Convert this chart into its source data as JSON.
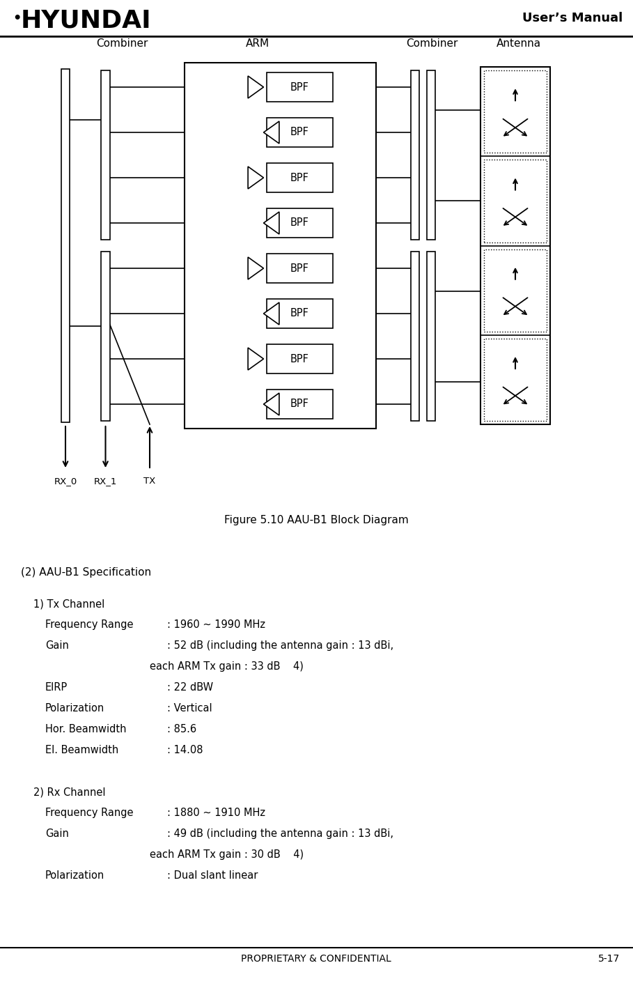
{
  "page_title": "User’s Manual",
  "footer_left": "PROPRIETARY & CONFIDENTIAL",
  "footer_right": "5-17",
  "figure_caption": "Figure 5.10 AAU-B1 Block Diagram",
  "spec_heading": "(2) AAU-B1 Specification",
  "col_labels": [
    "Combiner",
    "ARM",
    "Combiner",
    "Antenna"
  ],
  "port_labels": [
    "RX_0",
    "RX_1",
    "TX"
  ],
  "spec_items": [
    {
      "label": "1) Tx Channel",
      "value": "",
      "indent": 1,
      "extra_space_before": false
    },
    {
      "label": "Frequency Range",
      "value": ": 1960 ~ 1990 MHz",
      "indent": 2,
      "extra_space_before": false
    },
    {
      "label": "Gain",
      "value": ": 52 dB (including the antenna gain : 13 dBi,",
      "indent": 2,
      "extra_space_before": false
    },
    {
      "label": "",
      "value": "each ARM Tx gain : 33 dB    4)",
      "indent": 3,
      "extra_space_before": false
    },
    {
      "label": "EIRP",
      "value": ": 22 dBW",
      "indent": 2,
      "extra_space_before": false
    },
    {
      "label": "Polarization",
      "value": ": Vertical",
      "indent": 2,
      "extra_space_before": false
    },
    {
      "label": "Hor. Beamwidth",
      "value": ": 85.6",
      "indent": 2,
      "extra_space_before": false
    },
    {
      "label": "El. Beamwidth",
      "value": ": 14.08",
      "indent": 2,
      "extra_space_before": false
    },
    {
      "label": "",
      "value": "",
      "indent": 0,
      "extra_space_before": false
    },
    {
      "label": "2) Rx Channel",
      "value": "",
      "indent": 1,
      "extra_space_before": false
    },
    {
      "label": "Frequency Range",
      "value": ": 1880 ~ 1910 MHz",
      "indent": 2,
      "extra_space_before": false
    },
    {
      "label": "Gain",
      "value": ": 49 dB (including the antenna gain : 13 dBi,",
      "indent": 2,
      "extra_space_before": false
    },
    {
      "label": "",
      "value": "each ARM Tx gain : 30 dB    4)",
      "indent": 3,
      "extra_space_before": false
    },
    {
      "label": "Polarization",
      "value": ": Dual slant linear",
      "indent": 2,
      "extra_space_before": false
    }
  ],
  "bg_color": "#ffffff"
}
